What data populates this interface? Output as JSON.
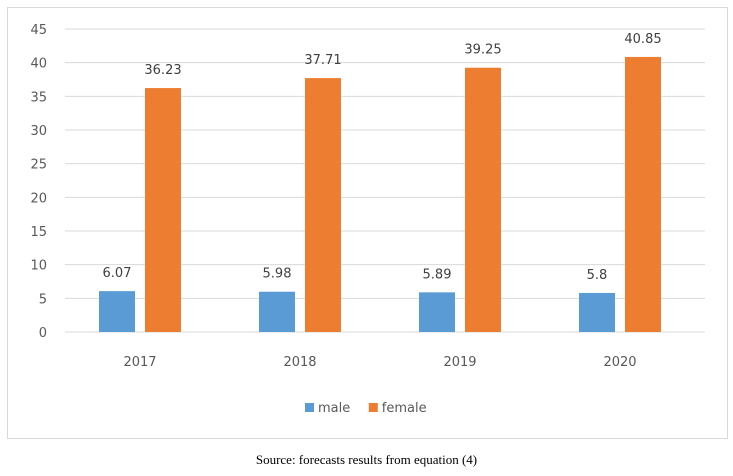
{
  "chart_data": {
    "type": "bar",
    "title": "",
    "xlabel": "",
    "ylabel": "",
    "categories": [
      "2017",
      "2018",
      "2019",
      "2020"
    ],
    "series": [
      {
        "name": "male",
        "values": [
          6.07,
          5.98,
          5.89,
          5.8
        ],
        "color": "#5b9bd5",
        "labels": [
          "6.07",
          "5.98",
          "5.89",
          "5.8"
        ]
      },
      {
        "name": "female",
        "values": [
          36.23,
          37.71,
          39.25,
          40.85
        ],
        "color": "#ed7d31",
        "labels": [
          "36.23",
          "37.71",
          "39.25",
          "40.85"
        ]
      }
    ],
    "ylim": [
      0,
      45
    ],
    "yticks": [
      0,
      5,
      10,
      15,
      20,
      25,
      30,
      35,
      40,
      45
    ],
    "grid": true,
    "legend": "bottom-center",
    "gridline_color": "#d9d9d9"
  },
  "caption": "Source: forecasts results from equation (4)"
}
